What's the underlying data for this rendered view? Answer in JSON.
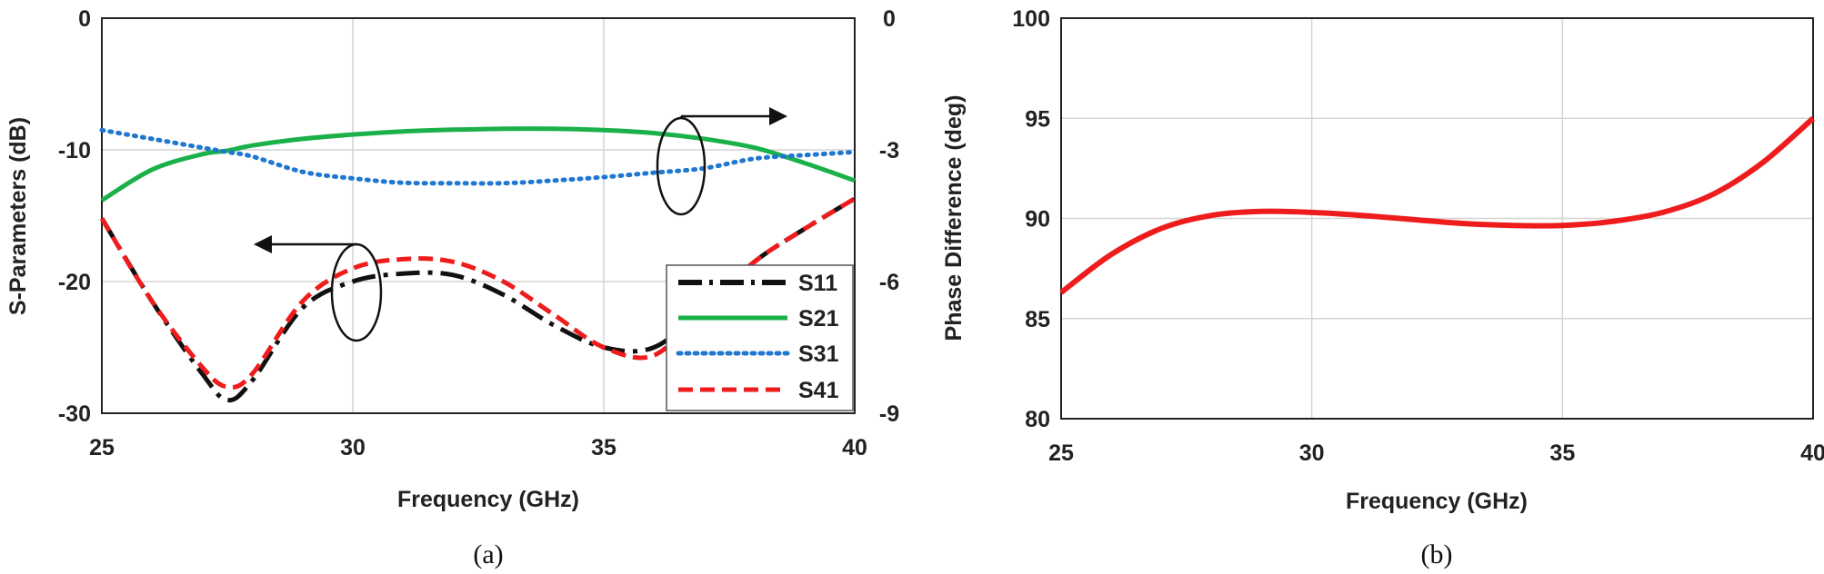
{
  "chart_data": [
    {
      "type": "line",
      "title": "",
      "caption": "(a)",
      "xlabel": "Frequency (GHz)",
      "ylabel": "S-Parameters (dB)",
      "xlim": [
        25,
        40
      ],
      "ylim": [
        -30,
        0
      ],
      "ylim_right": [
        -9,
        0
      ],
      "x_ticks": [
        "25",
        "30",
        "35",
        "40"
      ],
      "y_ticks": [
        "0",
        "-10",
        "-20",
        "-30"
      ],
      "y_ticks_right": [
        "0",
        "-3",
        "-6",
        "-9"
      ],
      "grid": true,
      "legend_position": "bottom-right",
      "x": [
        25,
        26,
        27,
        27.5,
        28,
        29,
        30,
        31,
        32,
        33,
        34,
        35,
        36,
        37,
        38,
        39,
        40
      ],
      "series": [
        {
          "name": "S11",
          "axis": "left",
          "color": "#111111",
          "style": "dashdot",
          "values": [
            -15.2,
            -21.5,
            -27.0,
            -29.0,
            -27.5,
            -22.0,
            -20.0,
            -19.4,
            -19.5,
            -21.0,
            -23.3,
            -25.0,
            -25.0,
            -22.0,
            -18.5,
            -16.0,
            -13.7
          ]
        },
        {
          "name": "S21",
          "axis": "right",
          "color": "#1ab04a",
          "style": "solid",
          "values": [
            -4.15,
            -3.45,
            -3.1,
            -3.02,
            -2.9,
            -2.75,
            -2.65,
            -2.58,
            -2.54,
            -2.52,
            -2.52,
            -2.55,
            -2.62,
            -2.75,
            -2.95,
            -3.3,
            -3.7
          ]
        },
        {
          "name": "S31",
          "axis": "right",
          "color": "#1f77d0",
          "style": "dotted",
          "values": [
            -2.55,
            -2.75,
            -2.95,
            -3.05,
            -3.15,
            -3.5,
            -3.65,
            -3.75,
            -3.76,
            -3.76,
            -3.7,
            -3.62,
            -3.52,
            -3.42,
            -3.2,
            -3.12,
            -3.05
          ]
        },
        {
          "name": "S41",
          "axis": "left",
          "color": "#ee1c1c",
          "style": "dashed",
          "values": [
            -15.2,
            -21.5,
            -26.5,
            -28.0,
            -27.0,
            -21.5,
            -19.0,
            -18.3,
            -18.5,
            -20.0,
            -22.5,
            -25.0,
            -25.6,
            -22.0,
            -18.5,
            -16.0,
            -13.7
          ]
        }
      ],
      "annotations": [
        "arrow pointing right near S21/S31 curves (right axis)",
        "arrow pointing left near S11/S41 curves (left axis)"
      ]
    },
    {
      "type": "line",
      "title": "",
      "caption": "(b)",
      "xlabel": "Frequency (GHz)",
      "ylabel": "Phase Difference (deg)",
      "xlim": [
        25,
        40
      ],
      "ylim": [
        80,
        100
      ],
      "x_ticks": [
        "25",
        "30",
        "35",
        "40"
      ],
      "y_ticks": [
        "100",
        "95",
        "90",
        "85",
        "80"
      ],
      "grid": true,
      "x": [
        25,
        26,
        27,
        28,
        29,
        30,
        31,
        32,
        33,
        34,
        35,
        36,
        37,
        38,
        39,
        40
      ],
      "series": [
        {
          "color": "#ee1c1c",
          "style": "solid",
          "values": [
            86.3,
            88.2,
            89.5,
            90.15,
            90.35,
            90.3,
            90.15,
            89.95,
            89.75,
            89.65,
            89.65,
            89.85,
            90.3,
            91.2,
            92.8,
            95.0
          ]
        }
      ]
    }
  ]
}
